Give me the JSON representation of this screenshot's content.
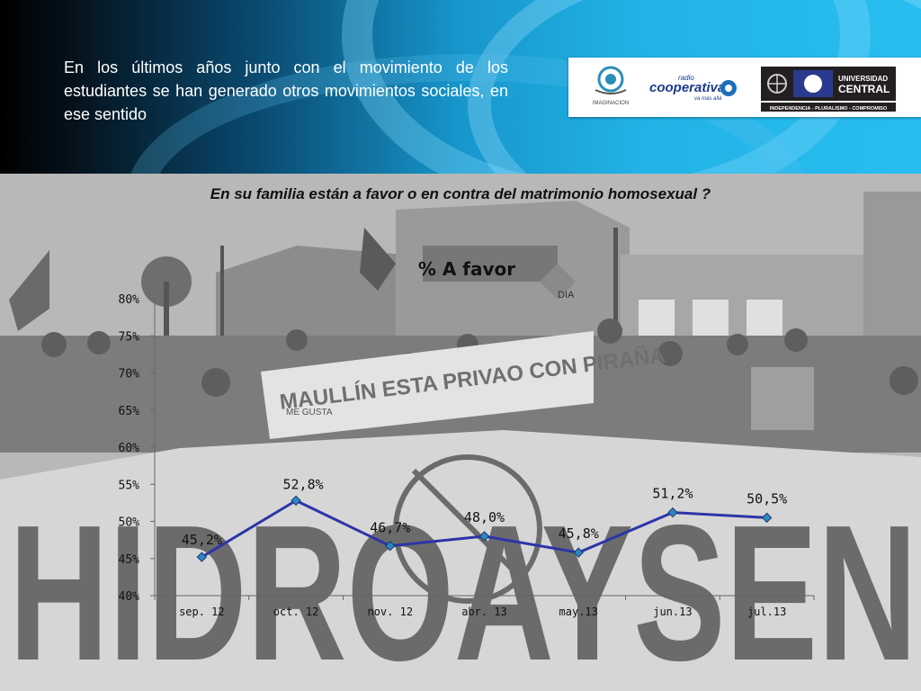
{
  "header": {
    "intro_text": "En los últimos años junto con el movimiento de los estudiantes se han generado otros movimientos sociales, en ese sentido"
  },
  "logos": {
    "imaginacion": "IMAGINACION",
    "radio_line1": "radio",
    "radio_line2": "cooperativa",
    "radio_tagline": "va más allá",
    "universidad_line1": "UNIVERSIDAD",
    "universidad_line2": "CENTRAL",
    "universidad_motto": "INDEPENDENCIA - PLURALISMO - COMPROMISO"
  },
  "question": "En su familia están a favor o en contra del matrimonio homosexual ?",
  "photo": {
    "banner_text": "MAULLÍN ESTA PRIVAO CON PIRAÑA",
    "big_banner_text": "HIDROAYSEN",
    "sign_text": "DIA",
    "megusta": "ME GUSTA"
  },
  "colors": {
    "line": "#2b35a8",
    "marker": "#2f86c4"
  },
  "chart_data": {
    "type": "line",
    "title": "% A favor",
    "categories": [
      "sep. 12",
      "oct. 12",
      "nov. 12",
      "abr. 13",
      "may.13",
      "jun.13",
      "jul.13"
    ],
    "series": [
      {
        "values": [
          45.2,
          52.8,
          46.7,
          48.0,
          45.8,
          51.2,
          50.5
        ]
      }
    ],
    "data_labels": [
      "45,2%",
      "52,8%",
      "46,7%",
      "48,0%",
      "45,8%",
      "51,2%",
      "50,5%"
    ],
    "ylim": [
      40,
      80
    ],
    "yticks": [
      40,
      45,
      50,
      55,
      60,
      65,
      70,
      75,
      80
    ],
    "ytick_labels": [
      "40%",
      "45%",
      "50%",
      "55%",
      "60%",
      "65%",
      "70%",
      "75%",
      "80%"
    ],
    "grid": false,
    "legend": "none"
  }
}
